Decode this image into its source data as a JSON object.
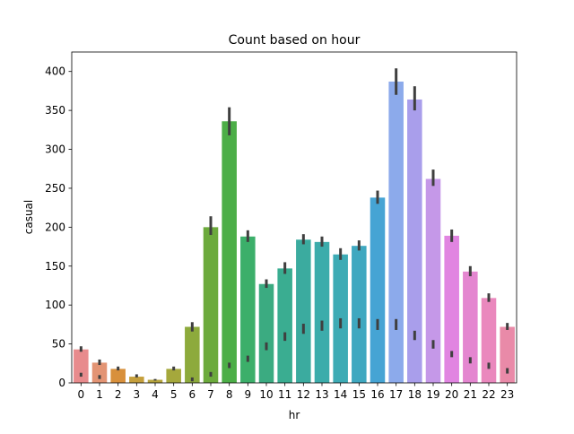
{
  "chart_data": {
    "type": "bar",
    "title": "Count based on hour",
    "xlabel": "hr",
    "ylabel": "casual",
    "ylim": [
      0,
      425
    ],
    "yticks": [
      0,
      50,
      100,
      150,
      200,
      250,
      300,
      350,
      400
    ],
    "grid": false,
    "legend": "none",
    "categories": [
      "0",
      "1",
      "2",
      "3",
      "4",
      "5",
      "6",
      "7",
      "8",
      "9",
      "10",
      "11",
      "12",
      "13",
      "14",
      "15",
      "16",
      "17",
      "18",
      "19",
      "20",
      "21",
      "22",
      "23"
    ],
    "values": [
      43,
      26,
      18,
      8,
      4,
      18,
      72,
      200,
      336,
      188,
      127,
      147,
      184,
      181,
      165,
      176,
      238,
      387,
      364,
      262,
      189,
      143,
      109,
      72
    ],
    "error_low": [
      40,
      23,
      16,
      7,
      3,
      16,
      66,
      190,
      318,
      181,
      122,
      140,
      178,
      175,
      158,
      170,
      230,
      370,
      350,
      253,
      181,
      137,
      104,
      68
    ],
    "error_high": [
      47,
      30,
      21,
      11,
      5,
      21,
      78,
      214,
      354,
      196,
      133,
      155,
      191,
      188,
      173,
      183,
      247,
      404,
      381,
      274,
      197,
      150,
      115,
      77
    ],
    "inner_marks": [
      [
        8,
        13
      ],
      [
        5,
        10
      ],
      null,
      null,
      null,
      null,
      [
        2,
        7
      ],
      [
        8,
        14
      ],
      [
        19,
        26
      ],
      [
        27,
        35
      ],
      [
        42,
        52
      ],
      [
        54,
        65
      ],
      [
        63,
        76
      ],
      [
        67,
        80
      ],
      [
        70,
        83
      ],
      [
        70,
        83
      ],
      [
        68,
        82
      ],
      [
        68,
        82
      ],
      [
        55,
        67
      ],
      [
        44,
        55
      ],
      [
        33,
        41
      ],
      [
        25,
        33
      ],
      [
        18,
        26
      ],
      [
        12,
        19
      ]
    ],
    "colors": [
      "#e88b8d",
      "#e39474",
      "#d8903c",
      "#c59f3c",
      "#b5a33c",
      "#a5a83c",
      "#8daa3c",
      "#6caa3c",
      "#4cae47",
      "#3caf6a",
      "#3bab81",
      "#3aad91",
      "#3bab9f",
      "#3cacab",
      "#3dabb5",
      "#3fa8c0",
      "#46a4d4",
      "#8caaeb",
      "#a99eeb",
      "#c598e8",
      "#e185e1",
      "#e486d0",
      "#ea88bd",
      "#e98aa8"
    ]
  }
}
